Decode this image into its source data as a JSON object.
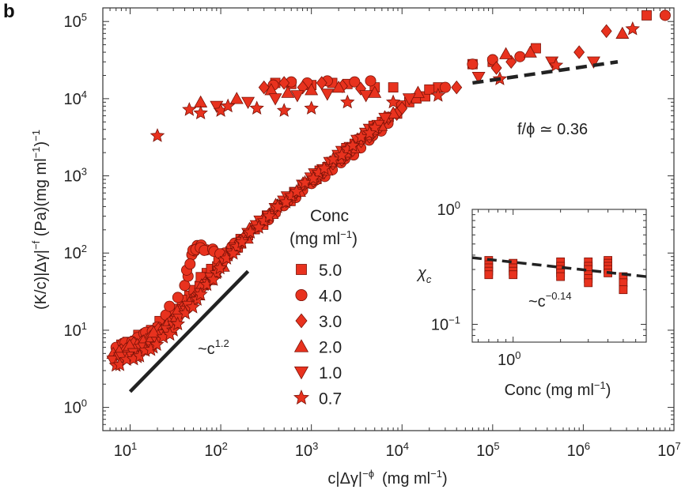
{
  "chart_data": {
    "panel_label": "b",
    "main": {
      "type": "scatter",
      "xscale": "log",
      "yscale": "log",
      "xlim": [
        5,
        10000000
      ],
      "ylim": [
        0.5,
        150000
      ],
      "xlabel": "c|Δγ|",
      "xlabel_sup": "−ϕ",
      "xlabel_units": "(mg ml",
      "xlabel_units_sup": "−1",
      "xlabel_close": ")",
      "ylabel_pre": "(K/c)|Δγ|",
      "ylabel_sup": "−f",
      "ylabel_post": " (Pa)(mg ml",
      "ylabel_sup2": "−1",
      "ylabel_close": ")",
      "ylabel_sup3": "−1",
      "x_ticks": [
        {
          "base": "10",
          "exp": "1",
          "value": 10
        },
        {
          "base": "10",
          "exp": "2",
          "value": 100
        },
        {
          "base": "10",
          "exp": "3",
          "value": 1000
        },
        {
          "base": "10",
          "exp": "4",
          "value": 10000
        },
        {
          "base": "10",
          "exp": "5",
          "value": 100000
        },
        {
          "base": "10",
          "exp": "6",
          "value": 1000000
        },
        {
          "base": "10",
          "exp": "7",
          "value": 10000000
        }
      ],
      "y_ticks": [
        {
          "base": "10",
          "exp": "0",
          "value": 1
        },
        {
          "base": "10",
          "exp": "1",
          "value": 10
        },
        {
          "base": "10",
          "exp": "2",
          "value": 100
        },
        {
          "base": "10",
          "exp": "3",
          "value": 1000
        },
        {
          "base": "10",
          "exp": "4",
          "value": 10000
        },
        {
          "base": "10",
          "exp": "5",
          "value": 100000
        }
      ],
      "legend_title_1": "Conc",
      "legend_title_2": "(mg ml",
      "legend_title_sup": "−1",
      "legend_title_close": ")",
      "series": [
        {
          "name": "5.0",
          "marker": "square",
          "upper": [
            [
              400,
              16000
            ],
            [
              600,
              15500
            ],
            [
              1000,
              15000
            ],
            [
              1700,
              16000
            ],
            [
              2500,
              15500
            ],
            [
              5000,
              14000
            ],
            [
              8000,
              14000
            ],
            [
              60000,
              28000
            ],
            [
              100000,
              30000
            ],
            [
              300000,
              45000
            ],
            [
              5000000,
              120000
            ]
          ],
          "lower": [
            [
              8,
              6.5
            ],
            [
              15,
              9
            ],
            [
              25,
              14
            ],
            [
              45,
              28
            ],
            [
              70,
              55
            ],
            [
              110,
              90
            ],
            [
              200,
              170
            ],
            [
              400,
              350
            ],
            [
              800,
              700
            ],
            [
              1500,
              1300
            ],
            [
              3000,
              2600
            ],
            [
              6000,
              5000
            ],
            [
              12000,
              9000
            ],
            [
              25000,
              14000
            ]
          ]
        },
        {
          "name": "4.0",
          "marker": "circle",
          "upper": [
            [
              380,
              15000
            ],
            [
              600,
              16500
            ],
            [
              900,
              16000
            ],
            [
              1500,
              17000
            ],
            [
              3000,
              16500
            ],
            [
              4500,
              17000
            ],
            [
              30000,
              14000
            ],
            [
              60000,
              28000
            ],
            [
              100000,
              32000
            ],
            [
              200000,
              35000
            ],
            [
              8000000,
              120000
            ]
          ],
          "lower": [
            [
              7,
              6
            ],
            [
              12,
              8
            ],
            [
              20,
              11
            ],
            [
              40,
              38
            ],
            [
              48,
              95
            ],
            [
              55,
              125
            ],
            [
              70,
              110
            ],
            [
              110,
              100
            ],
            [
              200,
              180
            ],
            [
              400,
              330
            ],
            [
              800,
              650
            ],
            [
              1700,
              1200
            ],
            [
              3500,
              2300
            ],
            [
              7000,
              4800
            ]
          ]
        },
        {
          "name": "3.0",
          "marker": "diamond",
          "upper": [
            [
              300,
              14000
            ],
            [
              500,
              16000
            ],
            [
              800,
              14000
            ],
            [
              1300,
              16000
            ],
            [
              2200,
              14500
            ],
            [
              3500,
              13500
            ],
            [
              40000,
              14000
            ],
            [
              110000,
              25000
            ],
            [
              160000,
              30000
            ],
            [
              900000,
              40000
            ],
            [
              1800000,
              75000
            ]
          ],
          "lower": [
            [
              8,
              5.5
            ],
            [
              15,
              7.5
            ],
            [
              28,
              13
            ],
            [
              50,
              26
            ],
            [
              90,
              58
            ],
            [
              160,
              140
            ],
            [
              300,
              280
            ],
            [
              600,
              560
            ],
            [
              1200,
              1000
            ],
            [
              2500,
              1900
            ],
            [
              5000,
              3800
            ],
            [
              10000,
              7500
            ]
          ]
        },
        {
          "name": "2.0",
          "marker": "triangle-up",
          "upper": [
            [
              60,
              9000
            ],
            [
              150,
              10000
            ],
            [
              360,
              13000
            ],
            [
              550,
              12000
            ],
            [
              1000,
              13000
            ],
            [
              2000,
              14000
            ],
            [
              5000,
              12000
            ],
            [
              15000,
              12000
            ],
            [
              140000,
              38000
            ],
            [
              260000,
              40000
            ],
            [
              2700000,
              70000
            ]
          ],
          "lower": [
            [
              6.5,
              5
            ],
            [
              12,
              6.5
            ],
            [
              22,
              10
            ],
            [
              40,
              20
            ],
            [
              75,
              45
            ],
            [
              140,
              110
            ],
            [
              250,
              240
            ],
            [
              500,
              480
            ],
            [
              1000,
              900
            ],
            [
              2000,
              1700
            ],
            [
              4000,
              3400
            ],
            [
              8000,
              6500
            ]
          ]
        },
        {
          "name": "1.0",
          "marker": "triangle-down",
          "upper": [
            [
              90,
              8000
            ],
            [
              200,
              9000
            ],
            [
              400,
              10000
            ],
            [
              700,
              11000
            ],
            [
              1500,
              11500
            ],
            [
              4000,
              11000
            ],
            [
              12000,
              10000
            ],
            [
              70000,
              19000
            ],
            [
              450000,
              30000
            ],
            [
              1300000,
              30000
            ]
          ],
          "lower": [
            [
              6.5,
              4
            ],
            [
              11,
              5
            ],
            [
              20,
              7
            ],
            [
              35,
              14
            ],
            [
              60,
              30
            ],
            [
              110,
              75
            ],
            [
              200,
              180
            ],
            [
              400,
              380
            ],
            [
              800,
              760
            ],
            [
              1600,
              1500
            ],
            [
              3200,
              2900
            ],
            [
              6500,
              5600
            ]
          ]
        },
        {
          "name": "0.7",
          "marker": "star",
          "upper": [
            [
              20,
              3300
            ],
            [
              45,
              7200
            ],
            [
              60,
              6500
            ],
            [
              100,
              7000
            ],
            [
              120,
              8000
            ],
            [
              250,
              7500
            ],
            [
              500,
              7000
            ],
            [
              1000,
              7500
            ],
            [
              2500,
              9000
            ],
            [
              8000,
              9000
            ],
            [
              25000,
              11000
            ],
            [
              120000,
              18000
            ],
            [
              500000,
              27000
            ],
            [
              3500000,
              80000
            ]
          ],
          "lower": [
            [
              7,
              3.5
            ],
            [
              12,
              4.5
            ],
            [
              18,
              6
            ],
            [
              30,
              10
            ],
            [
              55,
              25
            ],
            [
              90,
              55
            ],
            [
              150,
              120
            ],
            [
              300,
              260
            ],
            [
              600,
              550
            ],
            [
              1200,
              1100
            ],
            [
              2500,
              2200
            ],
            [
              5000,
              4200
            ]
          ]
        }
      ],
      "lines": [
        {
          "label_base": "~c",
          "label_sup": "1.2",
          "style": "solid",
          "points": [
            [
              10,
              1.6
            ],
            [
              200,
              58
            ]
          ]
        },
        {
          "label_base": "f/ϕ ≃ 0.36",
          "style": "dashed",
          "points": [
            [
              60000,
              16000
            ],
            [
              2400000,
              30000
            ]
          ]
        }
      ]
    },
    "inset": {
      "type": "scatter",
      "xscale": "log",
      "yscale": "log",
      "xlim": [
        0.55,
        7
      ],
      "ylim": [
        0.07,
        1.0
      ],
      "xlabel": "Conc (mg ml",
      "xlabel_sup": "−1",
      "xlabel_close": ")",
      "ylabel": "χ",
      "ylabel_sub": "c",
      "x_ticks": [
        {
          "base": "10",
          "exp": "0",
          "value": 1
        }
      ],
      "y_ticks": [
        {
          "base": "10",
          "exp": "0",
          "value": 1
        },
        {
          "base": "10",
          "exp": "−1",
          "value": 0.1
        }
      ],
      "marker": "square",
      "points": [
        [
          0.7,
          0.36
        ],
        [
          0.7,
          0.33
        ],
        [
          0.7,
          0.31
        ],
        [
          0.7,
          0.29
        ],
        [
          0.7,
          0.27
        ],
        [
          1.0,
          0.34
        ],
        [
          1.0,
          0.31
        ],
        [
          1.0,
          0.29
        ],
        [
          1.0,
          0.27
        ],
        [
          2.0,
          0.35
        ],
        [
          2.0,
          0.32
        ],
        [
          2.0,
          0.3
        ],
        [
          2.0,
          0.28
        ],
        [
          2.0,
          0.26
        ],
        [
          3.0,
          0.35
        ],
        [
          3.0,
          0.32
        ],
        [
          3.0,
          0.3
        ],
        [
          3.0,
          0.27
        ],
        [
          3.0,
          0.25
        ],
        [
          3.0,
          0.23
        ],
        [
          4.0,
          0.36
        ],
        [
          4.0,
          0.34
        ],
        [
          4.0,
          0.32
        ],
        [
          4.0,
          0.3
        ],
        [
          4.0,
          0.28
        ],
        [
          5.0,
          0.26
        ],
        [
          5.0,
          0.23
        ],
        [
          5.0,
          0.2
        ]
      ],
      "fit_label_base": "~c",
      "fit_label_sup": "−0.14",
      "fit": [
        [
          0.55,
          0.38
        ],
        [
          7,
          0.26
        ]
      ]
    }
  }
}
